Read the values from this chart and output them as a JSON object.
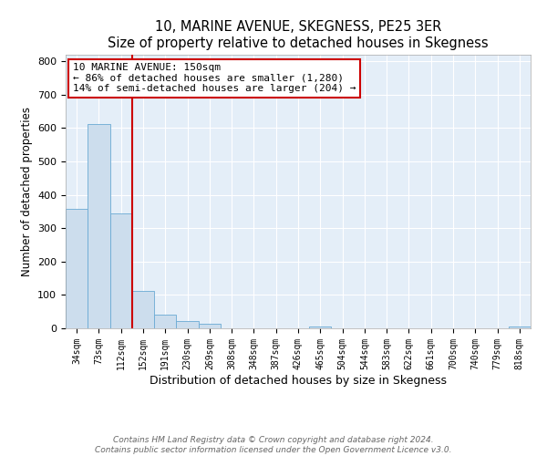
{
  "title": "10, MARINE AVENUE, SKEGNESS, PE25 3ER",
  "subtitle": "Size of property relative to detached houses in Skegness",
  "xlabel": "Distribution of detached houses by size in Skegness",
  "ylabel": "Number of detached properties",
  "bar_color": "#ccdded",
  "bar_edge_color": "#6aaad4",
  "background_color": "#e4eef8",
  "grid_color": "#ffffff",
  "categories": [
    "34sqm",
    "73sqm",
    "112sqm",
    "152sqm",
    "191sqm",
    "230sqm",
    "269sqm",
    "308sqm",
    "348sqm",
    "387sqm",
    "426sqm",
    "465sqm",
    "504sqm",
    "544sqm",
    "583sqm",
    "622sqm",
    "661sqm",
    "700sqm",
    "740sqm",
    "779sqm",
    "818sqm"
  ],
  "values": [
    357,
    611,
    344,
    113,
    40,
    22,
    13,
    0,
    0,
    0,
    0,
    5,
    0,
    0,
    0,
    0,
    0,
    0,
    0,
    0,
    5
  ],
  "ylim": [
    0,
    820
  ],
  "yticks": [
    0,
    100,
    200,
    300,
    400,
    500,
    600,
    700,
    800
  ],
  "vline_x": 2.5,
  "vline_color": "#cc0000",
  "annotation_title": "10 MARINE AVENUE: 150sqm",
  "annotation_line1": "← 86% of detached houses are smaller (1,280)",
  "annotation_line2": "14% of semi-detached houses are larger (204) →",
  "annotation_box_color": "#cc0000",
  "footer_line1": "Contains HM Land Registry data © Crown copyright and database right 2024.",
  "footer_line2": "Contains public sector information licensed under the Open Government Licence v3.0.",
  "figsize": [
    6.0,
    5.0
  ],
  "dpi": 100
}
